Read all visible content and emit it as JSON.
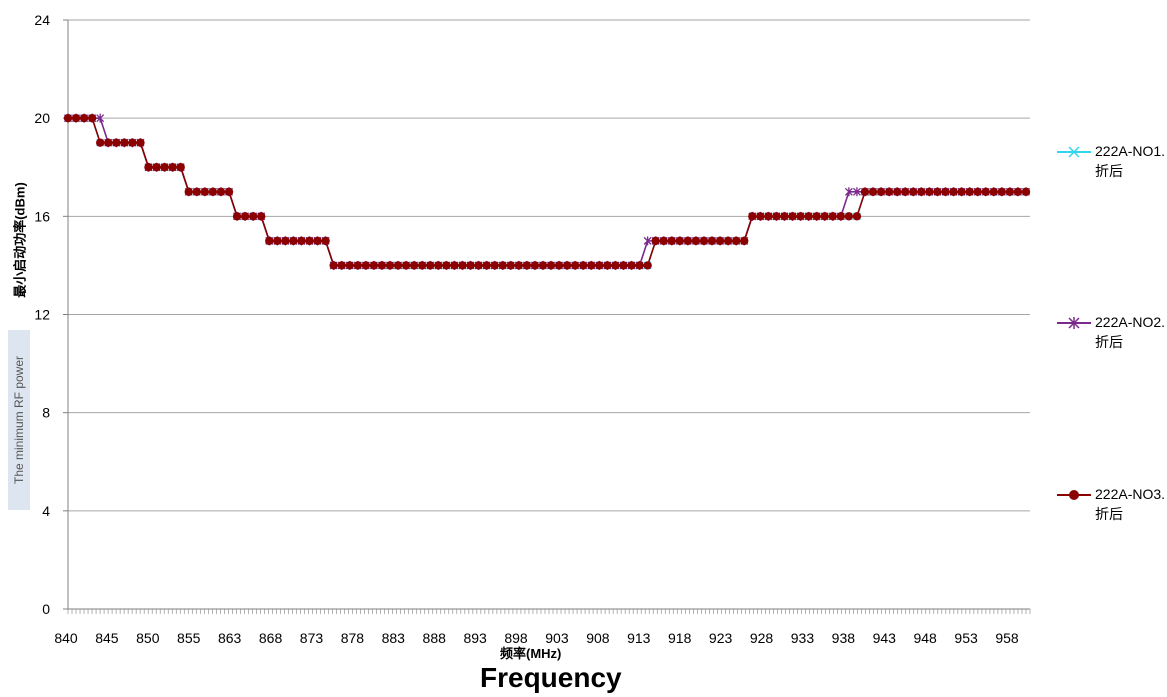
{
  "chart_data": {
    "type": "line",
    "xlabel": "频率(MHz)",
    "xlabel_en": "Frequency",
    "ylabel": "最小启动功率(dBm)",
    "ylabel_en": "The minimum RF power",
    "ylim": [
      0,
      24
    ],
    "yticks": [
      0,
      4,
      8,
      12,
      16,
      20,
      24
    ],
    "grid": true,
    "legend": "right",
    "x_tick_labels": [
      "840",
      "845",
      "850",
      "855",
      "863",
      "868",
      "873",
      "878",
      "883",
      "888",
      "893",
      "898",
      "903",
      "908",
      "913",
      "918",
      "923",
      "928",
      "933",
      "938",
      "943",
      "948",
      "953",
      "958"
    ],
    "n_points": 120,
    "series": [
      {
        "name": "222A-NO1.折后",
        "color": "#33d4f0",
        "marker": "x",
        "values": [
          20,
          20,
          20,
          20,
          19,
          19,
          19,
          19,
          19,
          19,
          18,
          18,
          18,
          18,
          18,
          17,
          17,
          17,
          17,
          17,
          17,
          16,
          16,
          16,
          16,
          15,
          15,
          15,
          15,
          15,
          15,
          15,
          15,
          14,
          14,
          14,
          14,
          14,
          14,
          14,
          14,
          14,
          14,
          14,
          14,
          14,
          14,
          14,
          14,
          14,
          14,
          14,
          14,
          14,
          14,
          14,
          14,
          14,
          14,
          14,
          14,
          14,
          14,
          14,
          14,
          14,
          14,
          14,
          14,
          14,
          14,
          14,
          14,
          15,
          15,
          15,
          15,
          15,
          15,
          15,
          15,
          15,
          15,
          15,
          15,
          16,
          16,
          16,
          16,
          16,
          16,
          16,
          16,
          16,
          16,
          16,
          16,
          16,
          16,
          17,
          17,
          17,
          17,
          17,
          17,
          17,
          17,
          17,
          17,
          17,
          17,
          17,
          17,
          17,
          17,
          17,
          17,
          17,
          17,
          17
        ]
      },
      {
        "name": "222A-NO2.折后",
        "color": "#7a2a8c",
        "marker": "star",
        "values": [
          20,
          20,
          20,
          20,
          20,
          19,
          19,
          19,
          19,
          19,
          18,
          18,
          18,
          18,
          18,
          17,
          17,
          17,
          17,
          17,
          17,
          16,
          16,
          16,
          16,
          15,
          15,
          15,
          15,
          15,
          15,
          15,
          15,
          14,
          14,
          14,
          14,
          14,
          14,
          14,
          14,
          14,
          14,
          14,
          14,
          14,
          14,
          14,
          14,
          14,
          14,
          14,
          14,
          14,
          14,
          14,
          14,
          14,
          14,
          14,
          14,
          14,
          14,
          14,
          14,
          14,
          14,
          14,
          14,
          14,
          14,
          14,
          15,
          15,
          15,
          15,
          15,
          15,
          15,
          15,
          15,
          15,
          15,
          15,
          15,
          16,
          16,
          16,
          16,
          16,
          16,
          16,
          16,
          16,
          16,
          16,
          16,
          17,
          17,
          17,
          17,
          17,
          17,
          17,
          17,
          17,
          17,
          17,
          17,
          17,
          17,
          17,
          17,
          17,
          17,
          17,
          17,
          17,
          17,
          17
        ]
      },
      {
        "name": "222A-NO3.折后",
        "color": "#8b0000",
        "marker": "circle",
        "values": [
          20,
          20,
          20,
          20,
          19,
          19,
          19,
          19,
          19,
          19,
          18,
          18,
          18,
          18,
          18,
          17,
          17,
          17,
          17,
          17,
          17,
          16,
          16,
          16,
          16,
          15,
          15,
          15,
          15,
          15,
          15,
          15,
          15,
          14,
          14,
          14,
          14,
          14,
          14,
          14,
          14,
          14,
          14,
          14,
          14,
          14,
          14,
          14,
          14,
          14,
          14,
          14,
          14,
          14,
          14,
          14,
          14,
          14,
          14,
          14,
          14,
          14,
          14,
          14,
          14,
          14,
          14,
          14,
          14,
          14,
          14,
          14,
          14,
          15,
          15,
          15,
          15,
          15,
          15,
          15,
          15,
          15,
          15,
          15,
          15,
          16,
          16,
          16,
          16,
          16,
          16,
          16,
          16,
          16,
          16,
          16,
          16,
          16,
          16,
          17,
          17,
          17,
          17,
          17,
          17,
          17,
          17,
          17,
          17,
          17,
          17,
          17,
          17,
          17,
          17,
          17,
          17,
          17,
          17,
          17
        ]
      }
    ]
  }
}
